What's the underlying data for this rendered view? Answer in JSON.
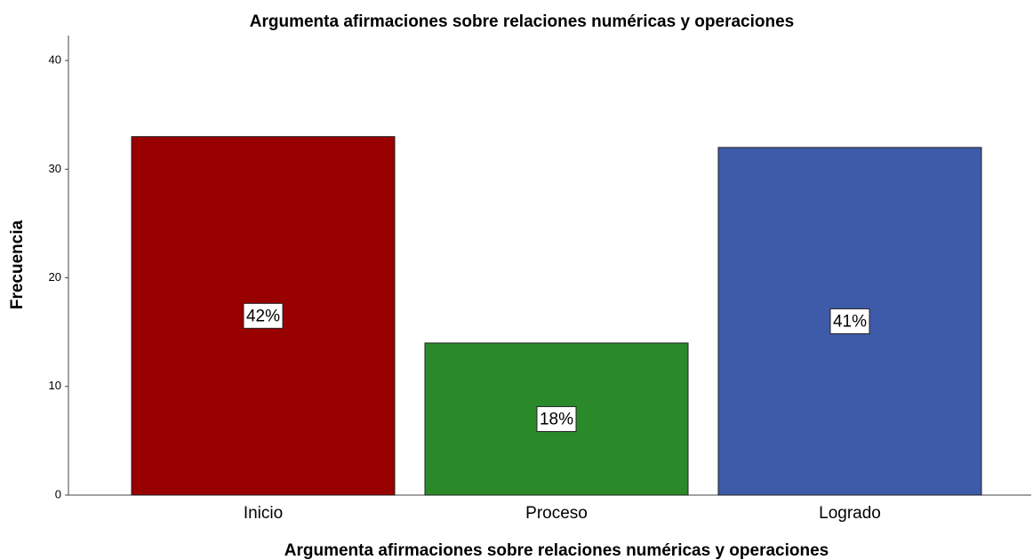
{
  "chart_data": {
    "type": "bar",
    "title": "Argumenta afirmaciones sobre relaciones numéricas y operaciones",
    "x_label": "Argumenta afirmaciones sobre relaciones numéricas y operaciones",
    "y_label": "Frecuencia",
    "categories": [
      "Inicio",
      "Proceso",
      "Logrado"
    ],
    "values": [
      33,
      14,
      32
    ],
    "data_labels": [
      "42%",
      "18%",
      "41%"
    ],
    "colors": [
      "#990000",
      "#2a8a2a",
      "#3e5ba9"
    ],
    "ylim": [
      0,
      42.3
    ],
    "yticks": [
      0,
      10,
      20,
      30,
      40
    ],
    "grid": false
  }
}
